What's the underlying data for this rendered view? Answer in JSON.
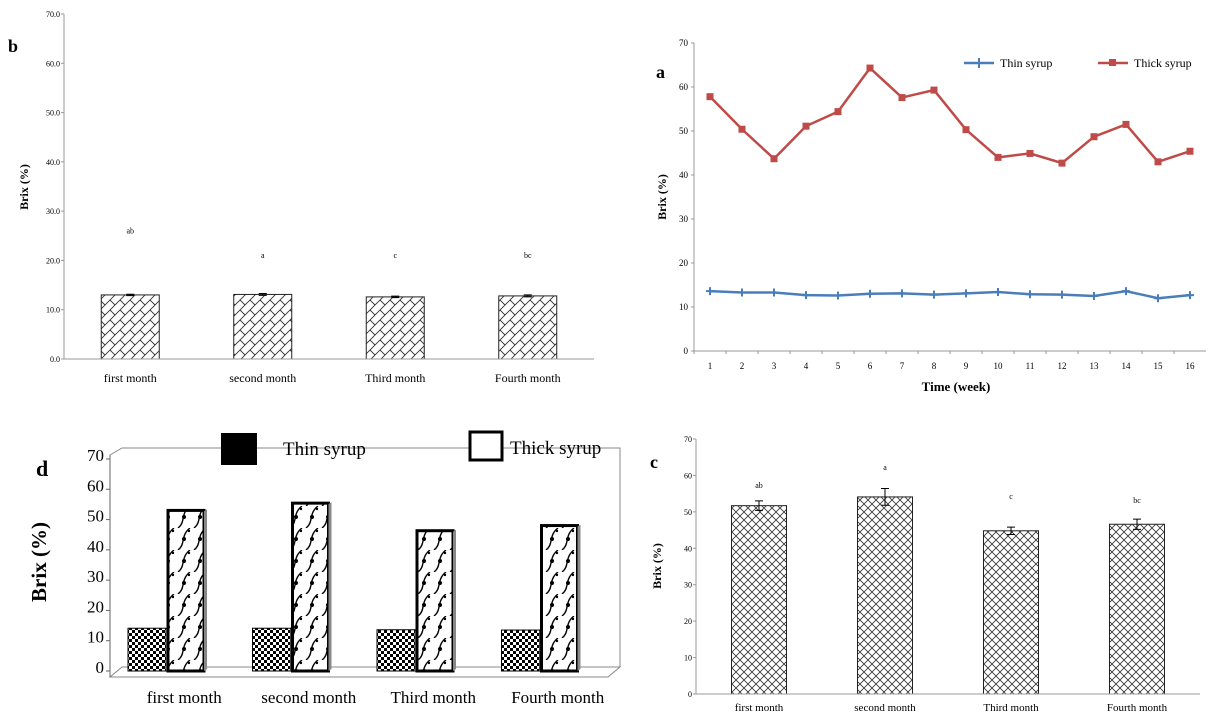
{
  "chart_data": [
    {
      "panel_letter": "b",
      "type": "bar",
      "ylabel": "Brix (%)",
      "xlabel": "",
      "ylim": [
        0,
        70
      ],
      "y_ticks": [
        "0.0",
        "10.0",
        "20.0",
        "30.0",
        "40.0",
        "50.0",
        "60.0",
        "70.0"
      ],
      "categories": [
        "first month",
        "second month",
        "Third month",
        "Fourth month"
      ],
      "values": [
        13.0,
        13.1,
        12.6,
        12.8
      ],
      "errors": [
        0.15,
        0.2,
        0.15,
        0.2
      ],
      "annotations": [
        "ab",
        "a",
        "c",
        "bc"
      ],
      "annotation_y": [
        25.5,
        20.5,
        20.5,
        20.5
      ],
      "grid": false
    },
    {
      "panel_letter": "a",
      "type": "line",
      "ylabel": "Brix (%)",
      "xlabel": "Time (week)",
      "ylim": [
        0,
        70
      ],
      "y_ticks": [
        "0",
        "10",
        "20",
        "30",
        "40",
        "50",
        "60",
        "70"
      ],
      "x": [
        "1",
        "2",
        "3",
        "4",
        "5",
        "6",
        "7",
        "8",
        "9",
        "10",
        "11",
        "12",
        "13",
        "14",
        "15",
        "16"
      ],
      "legend_position": "top-right",
      "grid": false,
      "series": [
        {
          "name": "Thin syrup",
          "color": "#4a7ebb",
          "marker": "plus",
          "values": [
            13.6,
            13.3,
            13.3,
            12.7,
            12.6,
            13.0,
            13.1,
            12.8,
            13.1,
            13.4,
            12.9,
            12.8,
            12.5,
            13.6,
            12.0,
            12.7
          ]
        },
        {
          "name": "Thick syrup",
          "color": "#be4b48",
          "marker": "square",
          "values": [
            57.8,
            50.4,
            43.7,
            51.1,
            54.4,
            64.3,
            57.6,
            59.3,
            50.3,
            44.0,
            44.9,
            42.7,
            48.7,
            51.5,
            43.0,
            45.4
          ]
        }
      ]
    },
    {
      "panel_letter": "d",
      "type": "bar",
      "ylabel": "Brix (%)",
      "xlabel": "",
      "ylim": [
        0,
        70
      ],
      "y_ticks": [
        "0",
        "10",
        "20",
        "30",
        "40",
        "50",
        "60",
        "70"
      ],
      "categories": [
        "first month",
        "second month",
        "Third month",
        "Fourth month"
      ],
      "legend_position": "top",
      "grid": false,
      "series": [
        {
          "name": "Thin syrup",
          "values": [
            12.8,
            12.8,
            12.3,
            12.2
          ]
        },
        {
          "name": "Thick syrup",
          "values": [
            51.7,
            54.1,
            45.0,
            46.7
          ]
        }
      ]
    },
    {
      "panel_letter": "c",
      "type": "bar",
      "ylabel": "Brix (%)",
      "xlabel": "",
      "ylim": [
        0,
        70
      ],
      "y_ticks": [
        "0",
        "10",
        "20",
        "30",
        "40",
        "50",
        "60",
        "70"
      ],
      "categories": [
        "first month",
        "second month",
        "Third month",
        "Fourth month"
      ],
      "values": [
        51.7,
        54.1,
        44.8,
        46.6
      ],
      "errors": [
        1.3,
        2.3,
        1.0,
        1.4
      ],
      "annotations": [
        "ab",
        "a",
        "c",
        "bc"
      ],
      "annotation_y": [
        56.5,
        61.5,
        53.5,
        52.5
      ],
      "grid": false
    }
  ]
}
